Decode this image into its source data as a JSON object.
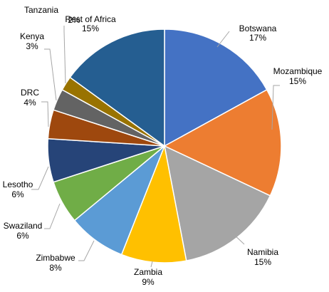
{
  "chart_data": {
    "type": "pie",
    "start_angle_deg": 0,
    "direction": "clockwise",
    "slices": [
      {
        "name": "Botswana",
        "value": 17,
        "label": "17%",
        "color": "#4472c4"
      },
      {
        "name": "Mozambique",
        "value": 15,
        "label": "15%",
        "color": "#ed7d31"
      },
      {
        "name": "Namibia",
        "value": 15,
        "label": "15%",
        "color": "#a5a5a5"
      },
      {
        "name": "Zambia",
        "value": 9,
        "label": "9%",
        "color": "#ffc000"
      },
      {
        "name": "Zimbabwe",
        "value": 8,
        "label": "8%",
        "color": "#5b9bd5"
      },
      {
        "name": "Swaziland",
        "value": 6,
        "label": "6%",
        "color": "#70ad47"
      },
      {
        "name": "Lesotho",
        "value": 6,
        "label": "6%",
        "color": "#264478"
      },
      {
        "name": "DRC",
        "value": 4,
        "label": "4%",
        "color": "#9e480e"
      },
      {
        "name": "Kenya",
        "value": 3,
        "label": "3%",
        "color": "#636363"
      },
      {
        "name": "Tanzania",
        "value": 2,
        "label": "2%",
        "color": "#997300"
      },
      {
        "name": "Rest of Africa",
        "value": 15,
        "label": "15%",
        "color": "#255e91"
      }
    ]
  }
}
